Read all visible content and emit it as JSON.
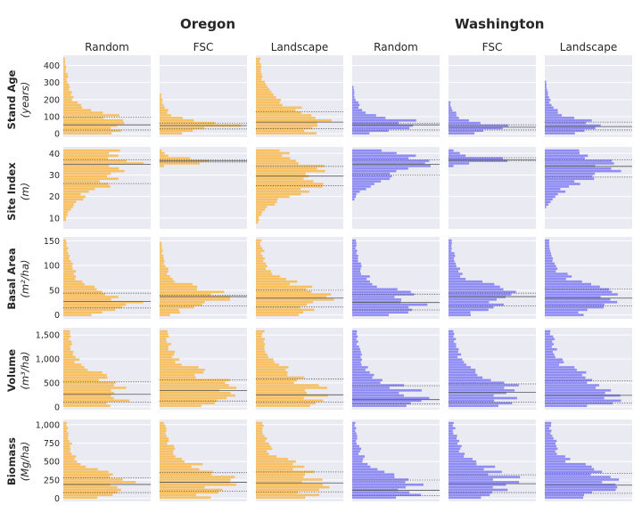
{
  "states": [
    "Oregon",
    "Washington"
  ],
  "columns": [
    "Random",
    "FSC",
    "Landscape",
    "Random",
    "FSC",
    "Landscape"
  ],
  "rows": [
    {
      "label": "Stand Age",
      "unit": "(years)"
    },
    {
      "label": "Site Index",
      "unit": "(m)"
    },
    {
      "label": "Basal Area",
      "unit": "(m²/ha)"
    },
    {
      "label": "Volume",
      "unit": "(m³/ha)"
    },
    {
      "label": "Biomass",
      "unit": "(Mg/ha)"
    }
  ],
  "colors": {
    "Oregon": "#f9b84a",
    "Washington": "#7f7df3",
    "panel_bg": "#eaeaf2",
    "grid": "#ffffff"
  },
  "chart_data": {
    "type": "bar",
    "orientation": "horizontal histogram grid",
    "grid": true,
    "rows": [
      {
        "name": "Stand Age",
        "ylim": [
          -20,
          460
        ],
        "yticks": [
          0,
          100,
          200,
          300,
          400
        ],
        "ytick_labels": [
          "0",
          "100",
          "200",
          "300",
          "400"
        ],
        "panels": [
          {
            "state": "Oregon",
            "design": "Random",
            "median": 52,
            "q1": 22,
            "q3": 98
          },
          {
            "state": "Oregon",
            "design": "FSC",
            "median": 48,
            "q1": 28,
            "q3": 62
          },
          {
            "state": "Oregon",
            "design": "Landscape",
            "median": 68,
            "q1": 30,
            "q3": 128
          },
          {
            "state": "Washington",
            "design": "Random",
            "median": 52,
            "q1": 22,
            "q3": 62
          },
          {
            "state": "Washington",
            "design": "FSC",
            "median": 38,
            "q1": 22,
            "q3": 52
          },
          {
            "state": "Washington",
            "design": "Landscape",
            "median": 42,
            "q1": 22,
            "q3": 68
          }
        ]
      },
      {
        "name": "Site Index",
        "ylim": [
          5,
          43
        ],
        "yticks": [
          10,
          20,
          30,
          40
        ],
        "ytick_labels": [
          "10",
          "20",
          "30",
          "40"
        ],
        "panels": [
          {
            "state": "Oregon",
            "design": "Random",
            "median": 35,
            "q1": 26,
            "q3": 37
          },
          {
            "state": "Oregon",
            "design": "FSC",
            "median": 36.5,
            "q1": 36,
            "q3": 37
          },
          {
            "state": "Oregon",
            "design": "Landscape",
            "median": 29.5,
            "q1": 25,
            "q3": 34
          },
          {
            "state": "Washington",
            "design": "Random",
            "median": 35,
            "q1": 30,
            "q3": 37
          },
          {
            "state": "Washington",
            "design": "FSC",
            "median": 37,
            "q1": 36.5,
            "q3": 38
          },
          {
            "state": "Washington",
            "design": "Landscape",
            "median": 34,
            "q1": 29,
            "q3": 37
          }
        ]
      },
      {
        "name": "Basal Area",
        "ylim": [
          -8,
          158
        ],
        "yticks": [
          0,
          50,
          100,
          150
        ],
        "ytick_labels": [
          "0",
          "50",
          "100",
          "150"
        ],
        "panels": [
          {
            "state": "Oregon",
            "design": "Random",
            "median": 27,
            "q1": 14,
            "q3": 44
          },
          {
            "state": "Oregon",
            "design": "FSC",
            "median": 37,
            "q1": 18,
            "q3": 40
          },
          {
            "state": "Oregon",
            "design": "Landscape",
            "median": 34,
            "q1": 16,
            "q3": 50
          },
          {
            "state": "Washington",
            "design": "Random",
            "median": 25,
            "q1": 10,
            "q3": 42
          },
          {
            "state": "Washington",
            "design": "FSC",
            "median": 37,
            "q1": 18,
            "q3": 44
          },
          {
            "state": "Washington",
            "design": "Landscape",
            "median": 34,
            "q1": 18,
            "q3": 52
          }
        ]
      },
      {
        "name": "Volume",
        "ylim": [
          -60,
          1650
        ],
        "yticks": [
          0,
          500,
          1000,
          1500
        ],
        "ytick_labels": [
          "0",
          "500",
          "1,000",
          "1,500"
        ],
        "panels": [
          {
            "state": "Oregon",
            "design": "Random",
            "median": 260,
            "q1": 100,
            "q3": 520
          },
          {
            "state": "Oregon",
            "design": "FSC",
            "median": 340,
            "q1": 120,
            "q3": 560
          },
          {
            "state": "Oregon",
            "design": "Landscape",
            "median": 250,
            "q1": 100,
            "q3": 580
          },
          {
            "state": "Washington",
            "design": "Random",
            "median": 150,
            "q1": 60,
            "q3": 440
          },
          {
            "state": "Washington",
            "design": "FSC",
            "median": 300,
            "q1": 100,
            "q3": 480
          },
          {
            "state": "Washington",
            "design": "Landscape",
            "median": 240,
            "q1": 80,
            "q3": 540
          }
        ]
      },
      {
        "name": "Biomass",
        "ylim": [
          -40,
          1070
        ],
        "yticks": [
          0,
          250,
          500,
          750,
          1000
        ],
        "ytick_labels": [
          "0",
          "250",
          "500",
          "750",
          "1,000"
        ],
        "panels": [
          {
            "state": "Oregon",
            "design": "Random",
            "median": 190,
            "q1": 80,
            "q3": 280
          },
          {
            "state": "Oregon",
            "design": "FSC",
            "median": 220,
            "q1": 100,
            "q3": 350
          },
          {
            "state": "Oregon",
            "design": "Landscape",
            "median": 210,
            "q1": 90,
            "q3": 360
          },
          {
            "state": "Washington",
            "design": "Random",
            "median": 110,
            "q1": 40,
            "q3": 250
          },
          {
            "state": "Washington",
            "design": "FSC",
            "median": 200,
            "q1": 80,
            "q3": 320
          },
          {
            "state": "Washington",
            "design": "Landscape",
            "median": 180,
            "q1": 70,
            "q3": 340
          }
        ]
      }
    ]
  }
}
